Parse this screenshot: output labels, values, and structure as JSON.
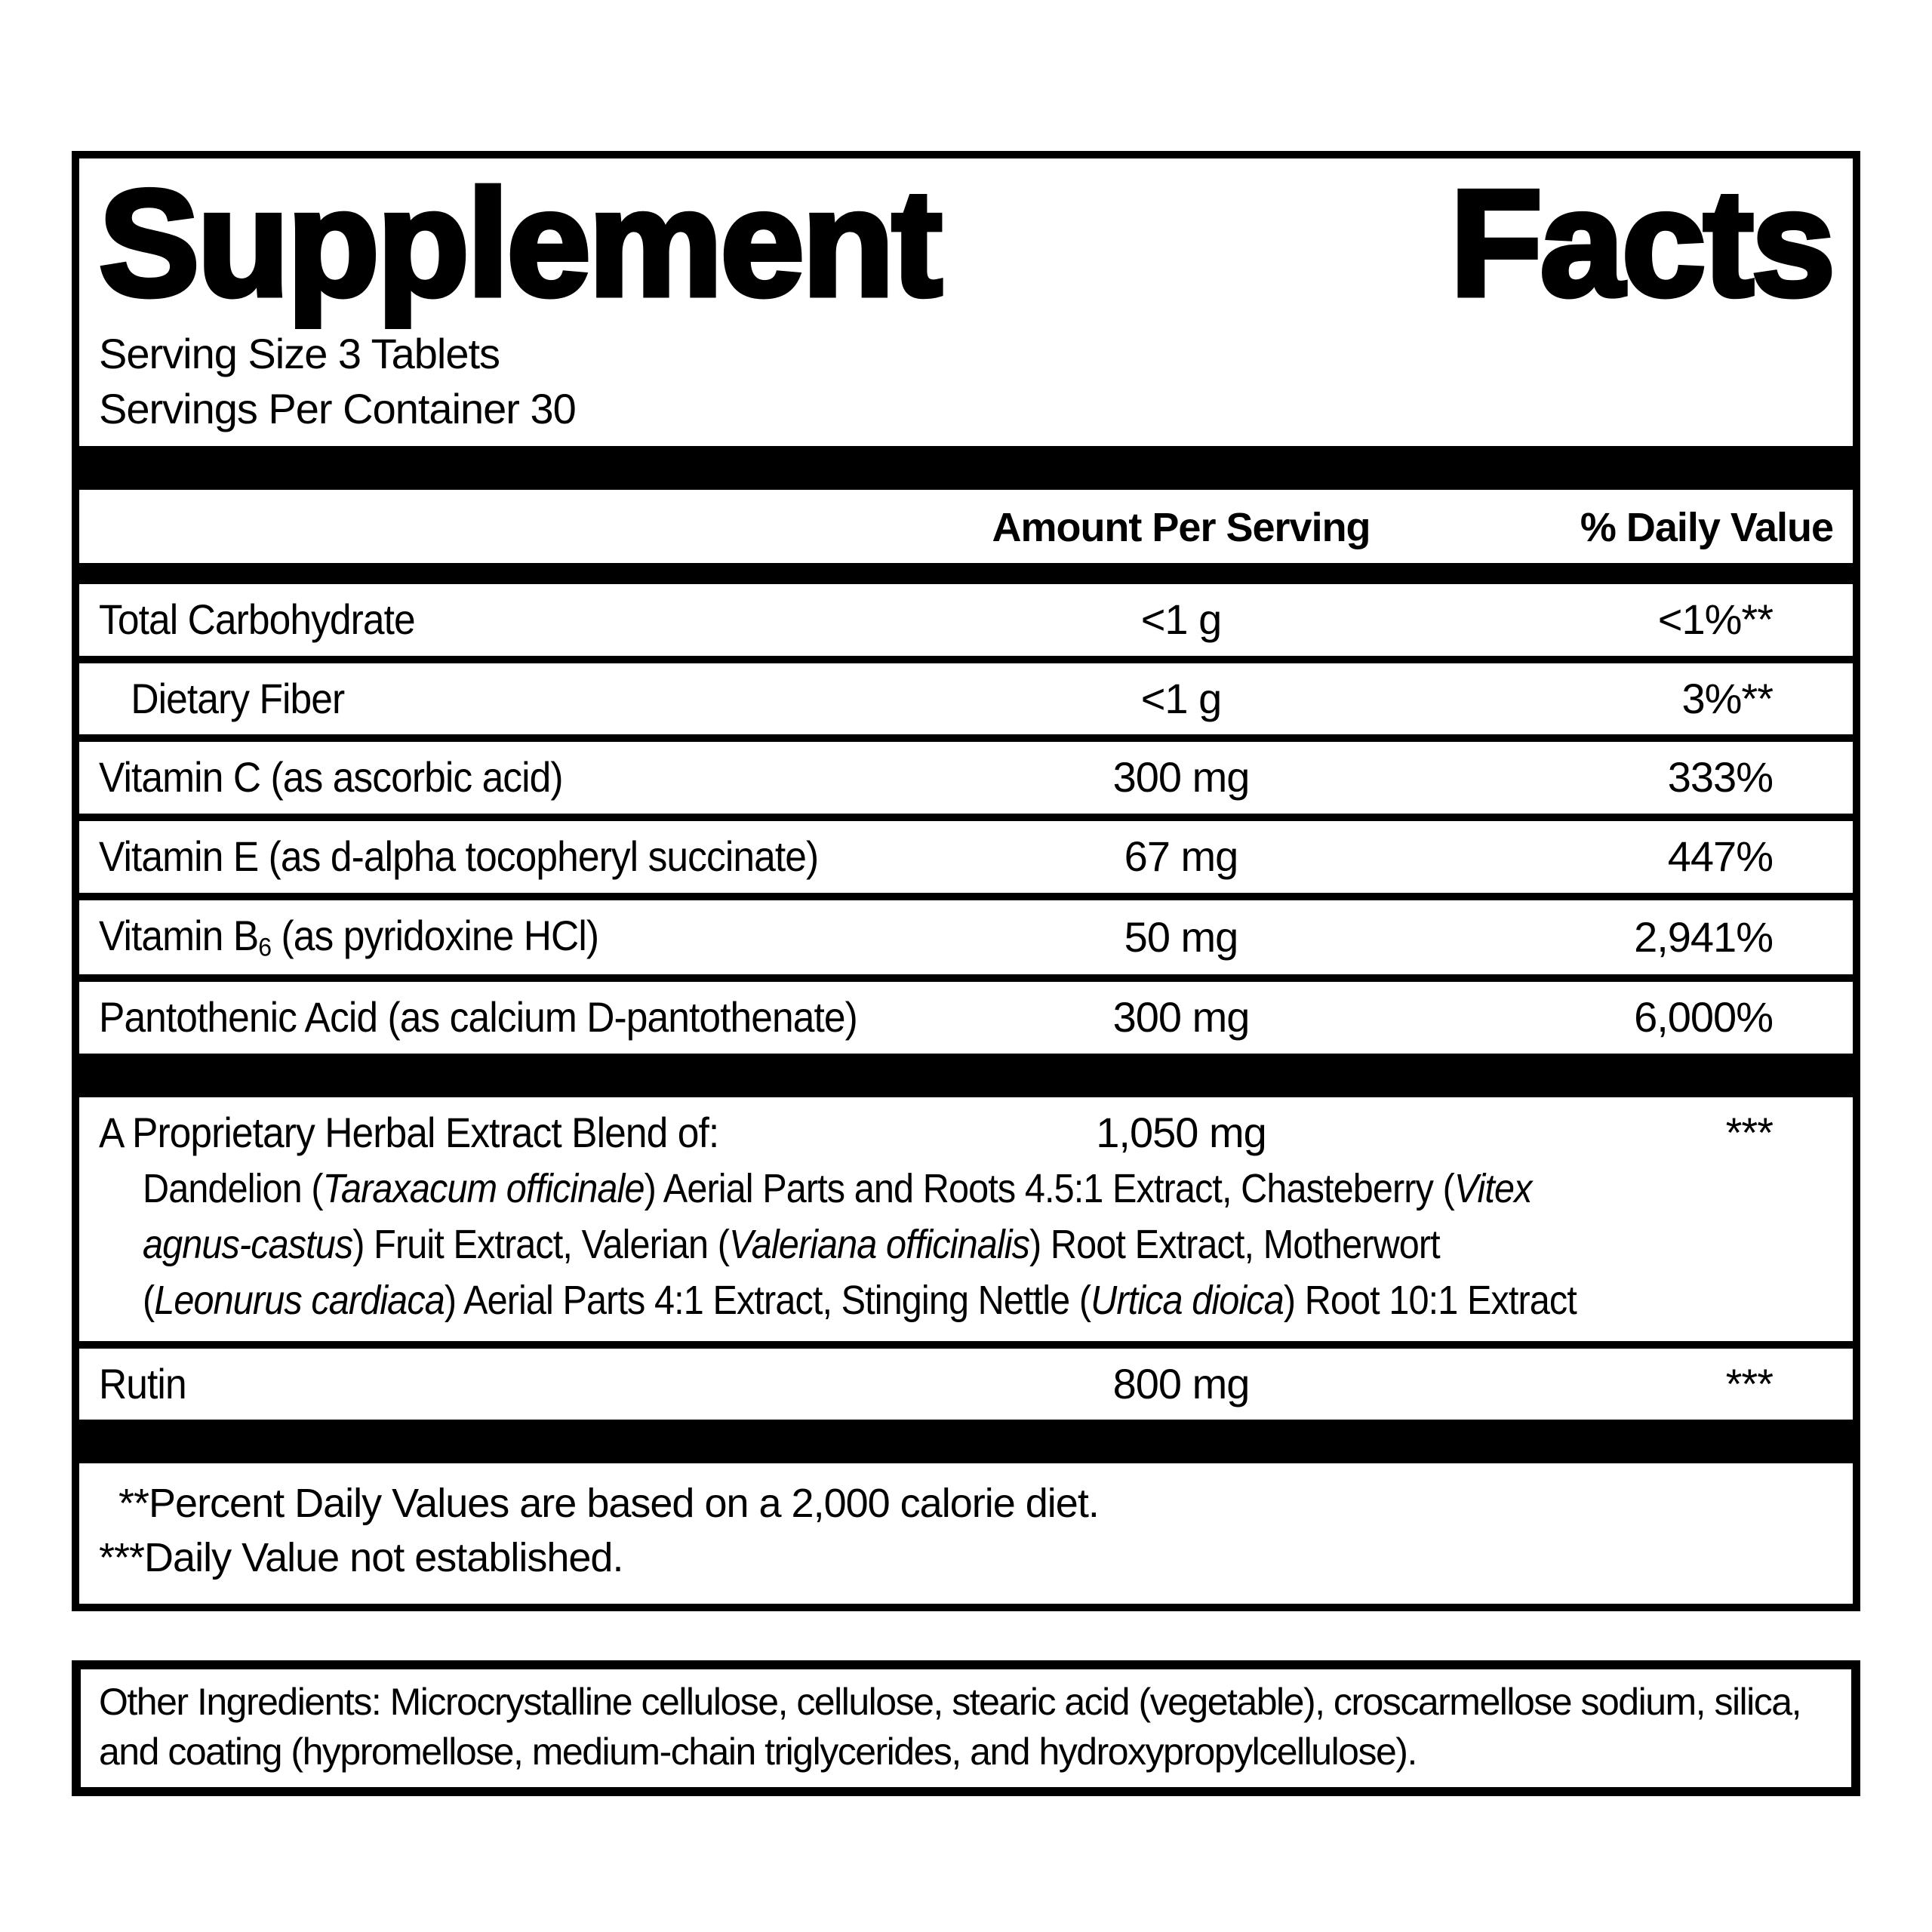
{
  "colors": {
    "ink": "#000000",
    "background": "#ffffff"
  },
  "label": {
    "title": {
      "left": "Supplement",
      "right": "Facts"
    },
    "serving": {
      "size": "Serving Size 3 Tablets",
      "per_container": "Servings Per Container 30"
    },
    "columns": {
      "amount": "Amount Per Serving",
      "dv": "% Daily Value"
    },
    "rows": [
      {
        "label": [
          {
            "text": "Total Carbohydrate"
          }
        ],
        "amount": "<1 g",
        "dv": "<1%**"
      },
      {
        "label": [
          {
            "text": "Dietary Fiber"
          }
        ],
        "amount": "<1 g",
        "dv": "3%**"
      },
      {
        "label": [
          {
            "text": "Vitamin C (as ascorbic acid)"
          }
        ],
        "amount": "300 mg",
        "dv": "333%"
      },
      {
        "label": [
          {
            "text": "Vitamin E (as d-alpha tocopheryl succinate)"
          }
        ],
        "amount": "67 mg",
        "dv": "447%"
      },
      {
        "label": [
          {
            "text": "Vitamin B"
          },
          {
            "text": "6",
            "sub": true
          },
          {
            "text": " (as pyridoxine HCl)"
          }
        ],
        "amount": "50 mg",
        "dv": "2,941%"
      },
      {
        "label": [
          {
            "text": "Pantothenic Acid (as calcium D-pantothenate)"
          }
        ],
        "amount": "300 mg",
        "dv": "6,000%"
      }
    ],
    "blend": {
      "header": "A Proprietary Herbal Extract Blend of:",
      "amount": "1,050 mg",
      "dv": "***",
      "description_lines": [
        [
          {
            "text": "Dandelion ("
          },
          {
            "text": "Taraxacum officinale",
            "italic": true
          },
          {
            "text": ") Aerial Parts and Roots 4.5:1 Extract, Chasteberry ("
          },
          {
            "text": "Vitex",
            "italic": true
          }
        ],
        [
          {
            "text": "agnus-castus",
            "italic": true
          },
          {
            "text": ") Fruit Extract, Valerian ("
          },
          {
            "text": "Valeriana officinalis",
            "italic": true
          },
          {
            "text": ") Root Extract, Motherwort"
          }
        ],
        [
          {
            "text": "("
          },
          {
            "text": "Leonurus cardiaca",
            "italic": true
          },
          {
            "text": ") Aerial Parts 4:1 Extract, Stinging Nettle ("
          },
          {
            "text": "Urtica dioica",
            "italic": true
          },
          {
            "text": ") Root 10:1 Extract"
          }
        ]
      ]
    },
    "rutin_row": {
      "label": "Rutin",
      "amount": "800 mg",
      "dv": "***"
    },
    "footnotes": [
      "**Percent Daily Values are based on a 2,000 calorie diet.",
      "***Daily Value not established."
    ],
    "other_ingredients": "Other Ingredients: Microcrystalline cellulose, cellulose, stearic acid (vegetable), croscarmellose sodium, silica, and coating (hypromellose, medium-chain triglycerides, and hydroxypropylcellulose)."
  }
}
